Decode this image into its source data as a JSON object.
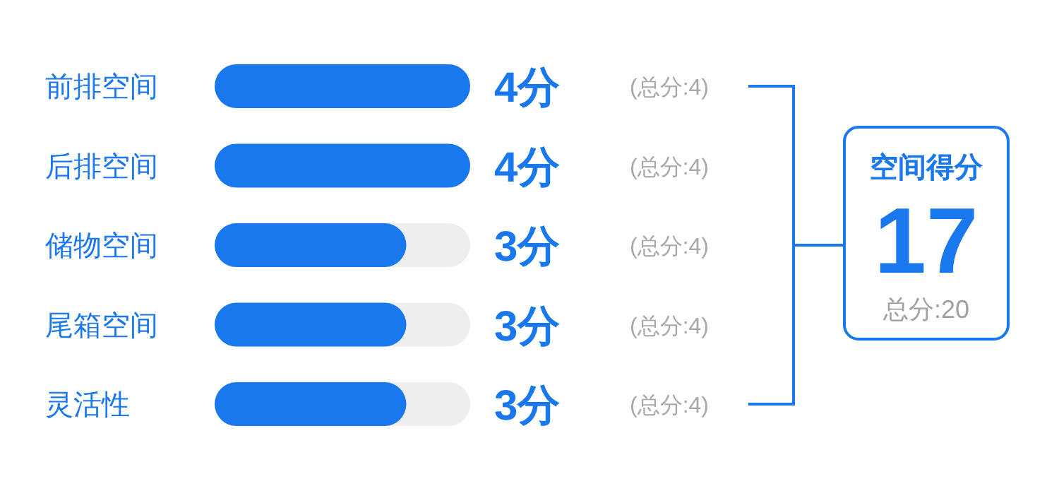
{
  "chart_data": [
    {
      "type": "bar",
      "orientation": "horizontal",
      "categories": [
        "前排空间",
        "后排空间",
        "储物空间",
        "尾箱空间",
        "灵活性"
      ],
      "values": [
        4,
        4,
        3,
        3,
        3
      ],
      "color": "#1a78ee",
      "xlim": [
        0,
        4
      ],
      "value_labels": [
        "4分",
        "4分",
        "3分",
        "3分",
        "3分"
      ],
      "annotations": [
        "(总分:4)",
        "(总分:4)",
        "(总分:4)",
        "(总分:4)",
        "(总分:4)"
      ]
    },
    {
      "type": "other",
      "title": "空间得分",
      "annotations": [
        "17",
        "总分:20"
      ]
    }
  ]
}
